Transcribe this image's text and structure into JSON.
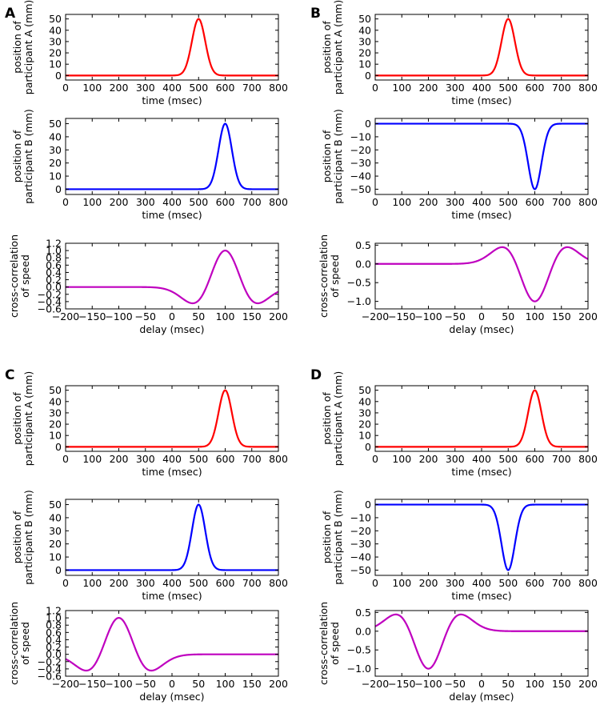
{
  "chart_data": [
    {
      "panel": "A",
      "type": "line",
      "title": "",
      "rows": [
        {
          "role": "position-a",
          "xlabel": "time (msec)",
          "ylabel": [
            "position of",
            "participant A (mm)"
          ],
          "xlim": [
            0,
            800
          ],
          "ylim": [
            -4,
            54
          ],
          "xticks": [
            0,
            100,
            200,
            300,
            400,
            500,
            600,
            700,
            800
          ],
          "yticks": [
            0,
            10,
            20,
            30,
            40,
            50
          ],
          "series": [
            {
              "name": "participant A",
              "color": "#ff0000",
              "kind": "gaussian",
              "center": 500,
              "amplitude": 50,
              "sigma": 25
            }
          ]
        },
        {
          "role": "position-b",
          "xlabel": "time (msec)",
          "ylabel": [
            "position of",
            "participant B (mm)"
          ],
          "xlim": [
            0,
            800
          ],
          "ylim": [
            -4,
            54
          ],
          "xticks": [
            0,
            100,
            200,
            300,
            400,
            500,
            600,
            700,
            800
          ],
          "yticks": [
            0,
            10,
            20,
            30,
            40,
            50
          ],
          "series": [
            {
              "name": "participant B",
              "color": "#0000ff",
              "kind": "gaussian",
              "center": 600,
              "amplitude": 50,
              "sigma": 25
            }
          ]
        },
        {
          "role": "cross-correlation",
          "xlabel": "delay (msec)",
          "ylabel": [
            "cross-correlation",
            "of speed"
          ],
          "xlim": [
            -200,
            200
          ],
          "ylim": [
            -0.6,
            1.2
          ],
          "xticks": [
            -200,
            -150,
            -100,
            -50,
            0,
            50,
            100,
            150,
            200
          ],
          "yticks": [
            -0.6,
            -0.4,
            -0.2,
            0.0,
            0.2,
            0.4,
            0.6,
            0.8,
            1.0,
            1.2
          ],
          "series": [
            {
              "name": "cross-correlation",
              "color": "#bf00bf",
              "kind": "xcorr",
              "center": 100,
              "sign": 1
            }
          ]
        }
      ]
    },
    {
      "panel": "B",
      "type": "line",
      "title": "",
      "rows": [
        {
          "role": "position-a",
          "xlabel": "time (msec)",
          "ylabel": [
            "position of",
            "participant A (mm)"
          ],
          "xlim": [
            0,
            800
          ],
          "ylim": [
            -4,
            54
          ],
          "xticks": [
            0,
            100,
            200,
            300,
            400,
            500,
            600,
            700,
            800
          ],
          "yticks": [
            0,
            10,
            20,
            30,
            40,
            50
          ],
          "series": [
            {
              "name": "participant A",
              "color": "#ff0000",
              "kind": "gaussian",
              "center": 500,
              "amplitude": 50,
              "sigma": 25
            }
          ]
        },
        {
          "role": "position-b",
          "xlabel": "time (msec)",
          "ylabel": [
            "position of",
            "participant B (mm)"
          ],
          "xlim": [
            0,
            800
          ],
          "ylim": [
            -54,
            4
          ],
          "xticks": [
            0,
            100,
            200,
            300,
            400,
            500,
            600,
            700,
            800
          ],
          "yticks": [
            0,
            -10,
            -20,
            -30,
            -40,
            -50
          ],
          "series": [
            {
              "name": "participant B",
              "color": "#0000ff",
              "kind": "gaussian",
              "center": 600,
              "amplitude": -50,
              "sigma": 25
            }
          ]
        },
        {
          "role": "cross-correlation",
          "xlabel": "delay (msec)",
          "ylabel": [
            "cross-correlation",
            "of speed"
          ],
          "xlim": [
            -200,
            200
          ],
          "ylim": [
            -1.2,
            0.55
          ],
          "xticks": [
            -200,
            -150,
            -100,
            -50,
            0,
            50,
            100,
            150,
            200
          ],
          "yticks": [
            0.5,
            0.0,
            -0.5,
            -1.0
          ],
          "series": [
            {
              "name": "cross-correlation",
              "color": "#bf00bf",
              "kind": "xcorr",
              "center": 100,
              "sign": -1
            }
          ]
        }
      ]
    },
    {
      "panel": "C",
      "type": "line",
      "title": "",
      "rows": [
        {
          "role": "position-a",
          "xlabel": "time (msec)",
          "ylabel": [
            "position of",
            "participant A (mm)"
          ],
          "xlim": [
            0,
            800
          ],
          "ylim": [
            -4,
            54
          ],
          "xticks": [
            0,
            100,
            200,
            300,
            400,
            500,
            600,
            700,
            800
          ],
          "yticks": [
            0,
            10,
            20,
            30,
            40,
            50
          ],
          "series": [
            {
              "name": "participant A",
              "color": "#ff0000",
              "kind": "gaussian",
              "center": 600,
              "amplitude": 50,
              "sigma": 25
            }
          ]
        },
        {
          "role": "position-b",
          "xlabel": "time (msec)",
          "ylabel": [
            "position of",
            "participant B (mm)"
          ],
          "xlim": [
            0,
            800
          ],
          "ylim": [
            -4,
            54
          ],
          "xticks": [
            0,
            100,
            200,
            300,
            400,
            500,
            600,
            700,
            800
          ],
          "yticks": [
            0,
            10,
            20,
            30,
            40,
            50
          ],
          "series": [
            {
              "name": "participant B",
              "color": "#0000ff",
              "kind": "gaussian",
              "center": 500,
              "amplitude": 50,
              "sigma": 25
            }
          ]
        },
        {
          "role": "cross-correlation",
          "xlabel": "delay (msec)",
          "ylabel": [
            "cross-correlation",
            "of speed"
          ],
          "xlim": [
            -200,
            200
          ],
          "ylim": [
            -0.6,
            1.2
          ],
          "xticks": [
            -200,
            -150,
            -100,
            -50,
            0,
            50,
            100,
            150,
            200
          ],
          "yticks": [
            -0.6,
            -0.4,
            -0.2,
            0.0,
            0.2,
            0.4,
            0.6,
            0.8,
            1.0,
            1.2
          ],
          "series": [
            {
              "name": "cross-correlation",
              "color": "#bf00bf",
              "kind": "xcorr",
              "center": -100,
              "sign": 1
            }
          ]
        }
      ]
    },
    {
      "panel": "D",
      "type": "line",
      "title": "",
      "rows": [
        {
          "role": "position-a",
          "xlabel": "time (msec)",
          "ylabel": [
            "position of",
            "participant A (mm)"
          ],
          "xlim": [
            0,
            800
          ],
          "ylim": [
            -4,
            54
          ],
          "xticks": [
            0,
            100,
            200,
            300,
            400,
            500,
            600,
            700,
            800
          ],
          "yticks": [
            0,
            10,
            20,
            30,
            40,
            50
          ],
          "series": [
            {
              "name": "participant A",
              "color": "#ff0000",
              "kind": "gaussian",
              "center": 600,
              "amplitude": 50,
              "sigma": 25
            }
          ]
        },
        {
          "role": "position-b",
          "xlabel": "time (msec)",
          "ylabel": [
            "position of",
            "participant B (mm)"
          ],
          "xlim": [
            0,
            800
          ],
          "ylim": [
            -54,
            4
          ],
          "xticks": [
            0,
            100,
            200,
            300,
            400,
            500,
            600,
            700,
            800
          ],
          "yticks": [
            0,
            -10,
            -20,
            -30,
            -40,
            -50
          ],
          "series": [
            {
              "name": "participant B",
              "color": "#0000ff",
              "kind": "gaussian",
              "center": 500,
              "amplitude": -50,
              "sigma": 25
            }
          ]
        },
        {
          "role": "cross-correlation",
          "xlabel": "delay (msec)",
          "ylabel": [
            "cross-correlation",
            "of speed"
          ],
          "xlim": [
            -200,
            200
          ],
          "ylim": [
            -1.2,
            0.55
          ],
          "xticks": [
            -200,
            -150,
            -100,
            -50,
            0,
            50,
            100,
            150,
            200
          ],
          "yticks": [
            0.5,
            0.0,
            -0.5,
            -1.0
          ],
          "series": [
            {
              "name": "cross-correlation",
              "color": "#bf00bf",
              "kind": "xcorr",
              "center": -100,
              "sign": -1
            }
          ]
        }
      ]
    }
  ]
}
